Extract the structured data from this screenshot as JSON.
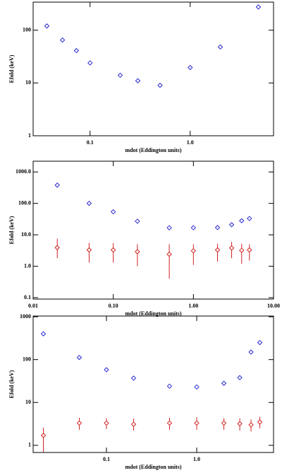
{
  "chart_data": [
    {
      "type": "scatter",
      "x_label": "mdot (Eddington units)",
      "y_label": "Efold (keV)",
      "log_x": true,
      "log_y": true,
      "xlim": [
        0.027,
        6.8
      ],
      "ylim": [
        1,
        340
      ],
      "xticks": [
        0.1,
        {
          "value": 1,
          "label": "1.0"
        }
      ],
      "yticks": [
        1,
        10,
        100
      ],
      "series": [
        {
          "color": "#2a2ad0",
          "marker": "diamond",
          "x": [
            0.037,
            0.053,
            0.073,
            0.1,
            0.2,
            0.3,
            0.5,
            1.0,
            2.0,
            4.8
          ],
          "values": [
            120,
            65,
            41,
            24,
            14,
            11,
            9,
            19.6,
            48,
            275
          ]
        }
      ]
    },
    {
      "type": "scatter",
      "x_label": "mdot (Eddington units)",
      "y_label": "Efold (keV)",
      "log_x": true,
      "log_y": true,
      "xlim": [
        0.01,
        10
      ],
      "ylim": [
        0.09,
        2200
      ],
      "xticks": [
        0.01,
        {
          "value": 0.1,
          "label": "0.10"
        },
        {
          "value": 1,
          "label": "1.00"
        },
        {
          "value": 10,
          "label": "10.00"
        }
      ],
      "yticks": [
        0.1,
        {
          "value": 1,
          "label": "1.0"
        },
        {
          "value": 10,
          "label": "10.0"
        },
        {
          "value": 100,
          "label": "100.0"
        },
        {
          "value": 1000,
          "label": "1000.0"
        }
      ],
      "series": [
        {
          "color": "#2a2ad0",
          "marker": "diamond",
          "x": [
            0.02,
            0.05,
            0.1,
            0.2,
            0.5,
            1,
            2,
            3,
            4,
            5
          ],
          "values": [
            380,
            100,
            54,
            27,
            16.8,
            16.8,
            17,
            21,
            28,
            33
          ]
        },
        {
          "color": "#d02020",
          "marker": "diamond",
          "x": [
            0.02,
            0.05,
            0.1,
            0.2,
            0.5,
            1,
            2,
            3,
            4,
            5
          ],
          "values": [
            3.9,
            3.3,
            3.3,
            2.9,
            2.4,
            3.1,
            3.3,
            3.8,
            3.2,
            3.3
          ],
          "lower": [
            1.8,
            1.3,
            1.3,
            1.0,
            0.4,
            1.1,
            1.4,
            1.8,
            1.2,
            1.5
          ],
          "upper": [
            7.5,
            5.5,
            5.5,
            5.0,
            5.0,
            5.0,
            5.2,
            6.0,
            5.2,
            5.0
          ]
        }
      ]
    },
    {
      "type": "scatter",
      "x_label": "mdot (Eddington units)",
      "y_label": "Efold (keV)",
      "log_x": true,
      "log_y": true,
      "xlim": [
        0.0154,
        7.1
      ],
      "ylim": [
        0.68,
        1040
      ],
      "xticks": [
        0.1,
        {
          "value": 1,
          "label": "1.0"
        }
      ],
      "yticks": [
        1,
        10,
        100,
        1000
      ],
      "series": [
        {
          "color": "#2a2ad0",
          "marker": "diamond",
          "x": [
            0.02,
            0.05,
            0.1,
            0.2,
            0.5,
            1,
            2,
            3,
            4,
            5
          ],
          "values": [
            400,
            112,
            58,
            37,
            24,
            23,
            28,
            38,
            150,
            250
          ]
        },
        {
          "color": "#d02020",
          "marker": "diamond",
          "x": [
            0.02,
            0.05,
            0.1,
            0.2,
            0.5,
            1,
            2,
            3,
            4,
            5
          ],
          "values": [
            1.7,
            3.3,
            3.3,
            3.1,
            3.3,
            3.3,
            3.3,
            3.2,
            3.0,
            3.5
          ],
          "lower": [
            0.7,
            2.3,
            2.4,
            2.2,
            2.3,
            2.3,
            2.3,
            2.2,
            2.1,
            2.5
          ],
          "upper": [
            2.6,
            4.4,
            4.3,
            4.2,
            4.4,
            4.5,
            4.3,
            4.3,
            4.0,
            4.6
          ]
        }
      ]
    }
  ]
}
